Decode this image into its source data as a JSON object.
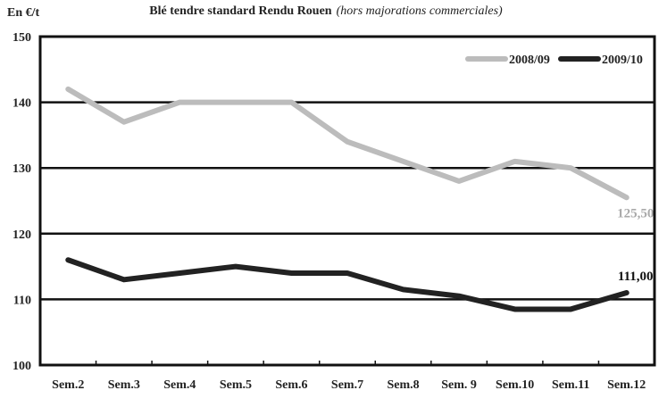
{
  "chart_data": {
    "type": "line",
    "title": "Blé tendre standard Rendu Rouen",
    "subtitle": "(hors majorations commerciales)",
    "ylabel": "En €/t",
    "categories": [
      "Sem.2",
      "Sem.3",
      "Sem.4",
      "Sem.5",
      "Sem.6",
      "Sem.7",
      "Sem.8",
      "Sem. 9",
      "Sem.10",
      "Sem.11",
      "Sem.12"
    ],
    "ylim": [
      100,
      150
    ],
    "yticks": [
      "100",
      "110",
      "120",
      "130",
      "140",
      "150"
    ],
    "grid": true,
    "legend_position": "top-right",
    "series": [
      {
        "name": "2008/09",
        "color": "#bcbcbc",
        "values": [
          142,
          137,
          140,
          140,
          140,
          134,
          131,
          128,
          131,
          130,
          125.5
        ],
        "end_label": "125,50"
      },
      {
        "name": "2009/10",
        "color": "#222222",
        "values": [
          116,
          113,
          114,
          115,
          114,
          114,
          111.5,
          110.5,
          108.5,
          108.5,
          111
        ],
        "end_label": "111,00"
      }
    ]
  }
}
